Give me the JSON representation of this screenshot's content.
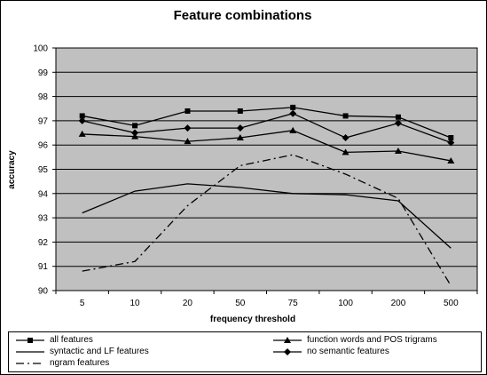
{
  "chart_data": {
    "type": "line",
    "title": "Feature combinations",
    "xlabel": "frequency threshold",
    "ylabel": "accuracy",
    "categories": [
      "5",
      "10",
      "20",
      "50",
      "75",
      "100",
      "200",
      "500"
    ],
    "ylim": [
      90,
      100
    ],
    "yticks": [
      90,
      91,
      92,
      93,
      94,
      95,
      96,
      97,
      98,
      99,
      100
    ],
    "grid": true,
    "background": "#c0c0c0",
    "legend_position": "bottom",
    "series": [
      {
        "name": "all features",
        "marker": "square",
        "dash": "solid",
        "values": [
          97.2,
          96.8,
          97.4,
          97.4,
          97.55,
          97.2,
          97.15,
          96.3
        ]
      },
      {
        "name": "function words and POS trigrams",
        "marker": "triangle",
        "dash": "solid",
        "values": [
          96.45,
          96.35,
          96.15,
          96.3,
          96.6,
          95.7,
          95.75,
          95.35
        ]
      },
      {
        "name": "syntactic and LF features",
        "marker": "none",
        "dash": "solid",
        "values": [
          93.2,
          94.1,
          94.4,
          94.25,
          94.0,
          93.95,
          93.7,
          91.75
        ]
      },
      {
        "name": "no semantic features",
        "marker": "diamond",
        "dash": "solid",
        "values": [
          97.0,
          96.5,
          96.7,
          96.7,
          97.3,
          96.3,
          96.9,
          96.1
        ]
      },
      {
        "name": "ngram features",
        "marker": "none",
        "dash": "dashdot",
        "values": [
          90.8,
          91.2,
          93.5,
          95.15,
          95.6,
          94.8,
          93.8,
          90.2
        ]
      }
    ]
  }
}
